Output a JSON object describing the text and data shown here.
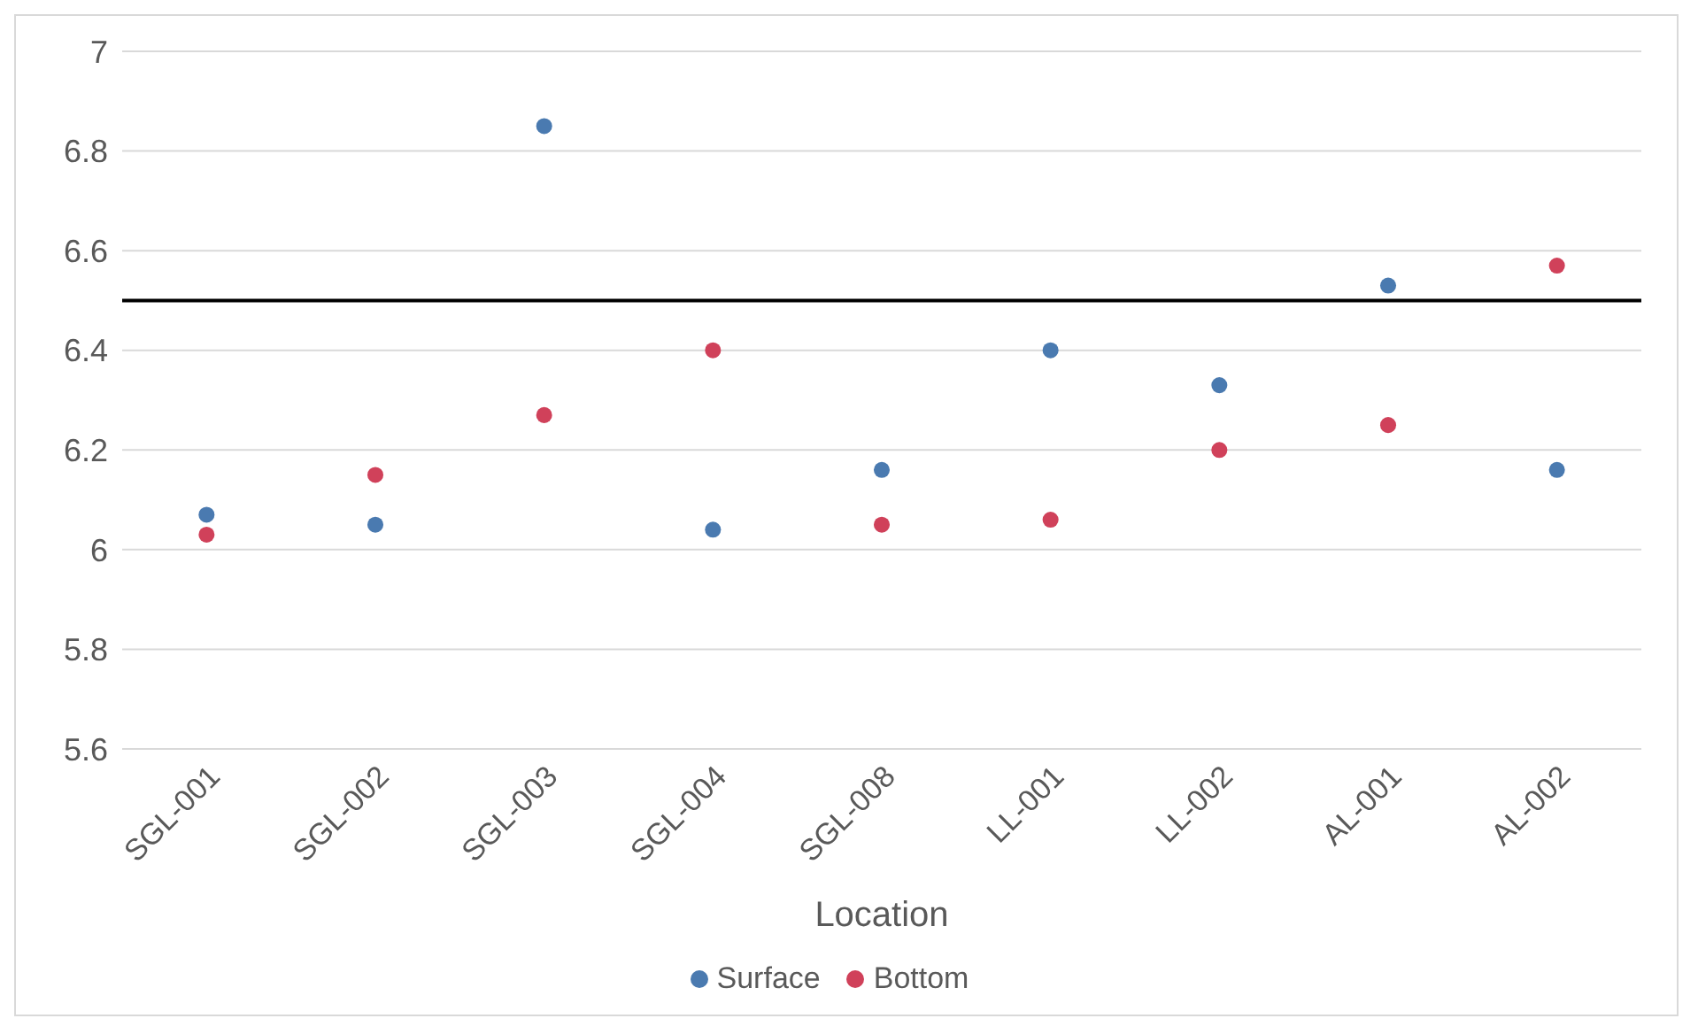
{
  "chart_data": {
    "type": "scatter",
    "xlabel": "Location",
    "categories": [
      "SGL-001",
      "SGL-002",
      "SGL-003",
      "SGL-004",
      "SGL-008",
      "LL-001",
      "LL-002",
      "AL-001",
      "AL-002"
    ],
    "series": [
      {
        "name": "Surface",
        "color": "#4a7ab0",
        "values": [
          6.07,
          6.05,
          6.85,
          6.04,
          6.16,
          6.4,
          6.33,
          6.53,
          6.16
        ]
      },
      {
        "name": "Bottom",
        "color": "#d0415a",
        "values": [
          6.03,
          6.15,
          6.27,
          6.4,
          6.05,
          6.06,
          6.2,
          6.25,
          6.57
        ]
      }
    ],
    "ylim": [
      5.6,
      7
    ],
    "yticks": [
      5.6,
      5.8,
      6,
      6.2,
      6.4,
      6.6,
      6.8,
      7
    ],
    "ref_lines": [
      {
        "axis": "y",
        "value": 6.5,
        "color": "#000000"
      }
    ],
    "grid": "y",
    "legend": "bottom",
    "marker": "circle"
  }
}
